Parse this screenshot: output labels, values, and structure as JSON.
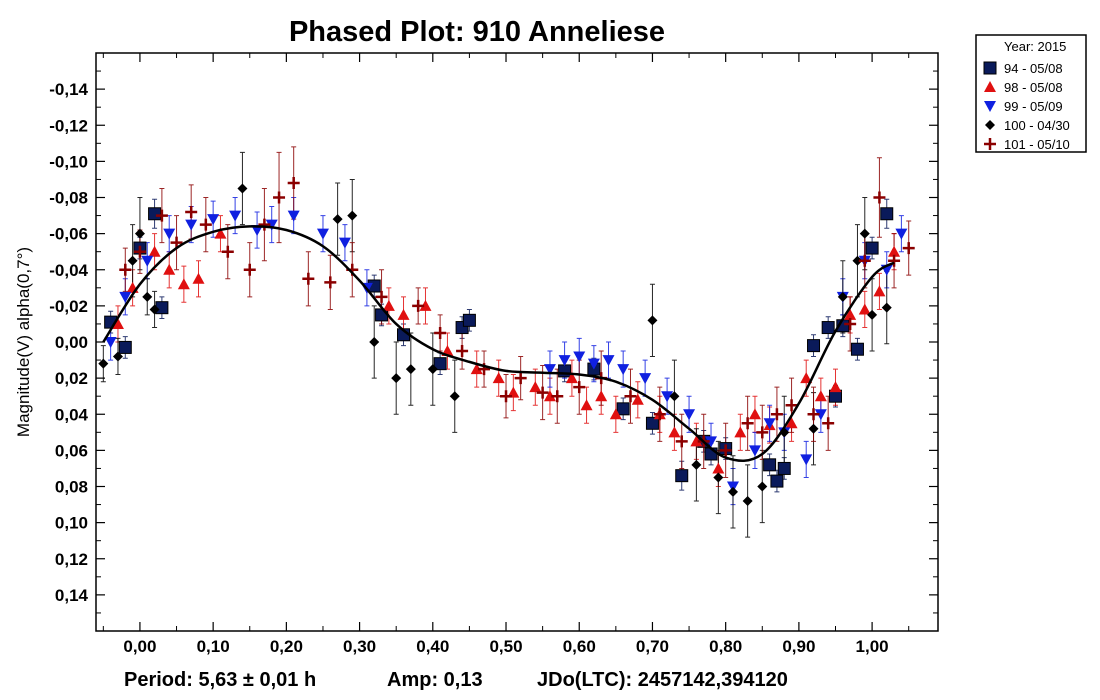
{
  "chart_data": {
    "type": "scatter",
    "title": "Phased Plot: 910 Anneliese",
    "ylabel": "Magnitude(V) alpha(0,7°)",
    "xlabel": "",
    "xlim": [
      -0.06,
      1.09
    ],
    "ylim": [
      0.16,
      -0.16
    ],
    "y_inverted": true,
    "x_ticks": [
      "0,00",
      "0,10",
      "0,20",
      "0,30",
      "0,40",
      "0,50",
      "0,60",
      "0,70",
      "0,80",
      "0,90",
      "1,00"
    ],
    "x_tick_values": [
      0,
      0.1,
      0.2,
      0.3,
      0.4,
      0.5,
      0.6,
      0.7,
      0.8,
      0.9,
      1.0
    ],
    "y_ticks": [
      "-0,14",
      "-0,12",
      "-0,10",
      "-0,08",
      "-0,06",
      "-0,04",
      "-0,02",
      "0,00",
      "0,02",
      "0,04",
      "0,06",
      "0,08",
      "0,10",
      "0,12",
      "0,14"
    ],
    "y_tick_values": [
      -0.14,
      -0.12,
      -0.1,
      -0.08,
      -0.06,
      -0.04,
      -0.02,
      0,
      0.02,
      0.04,
      0.06,
      0.08,
      0.1,
      0.12,
      0.14
    ],
    "grid": false,
    "legend": {
      "title": "Year: 2015",
      "position": "top-right-outside",
      "entries": [
        {
          "label": "94 - 05/08",
          "marker": "square",
          "color": "#0a1a5a"
        },
        {
          "label": "98 - 05/08",
          "marker": "triangle-up",
          "color": "#e01010"
        },
        {
          "label": "99 - 05/09",
          "marker": "triangle-down",
          "color": "#1020e0"
        },
        {
          "label": "100 - 04/30",
          "marker": "diamond",
          "color": "#000000"
        },
        {
          "label": "101 - 05/10",
          "marker": "plus",
          "color": "#8b0000"
        }
      ]
    },
    "fit_curve": {
      "color": "#000000",
      "x": [
        -0.05,
        0.0,
        0.05,
        0.1,
        0.15,
        0.2,
        0.25,
        0.3,
        0.35,
        0.4,
        0.45,
        0.5,
        0.55,
        0.6,
        0.65,
        0.7,
        0.75,
        0.8,
        0.85,
        0.9,
        0.95,
        1.0,
        1.03
      ],
      "y": [
        0.0,
        -0.032,
        -0.052,
        -0.061,
        -0.064,
        -0.062,
        -0.053,
        -0.034,
        -0.01,
        0.004,
        0.011,
        0.016,
        0.017,
        0.018,
        0.022,
        0.032,
        0.048,
        0.064,
        0.062,
        0.034,
        -0.006,
        -0.036,
        -0.044
      ]
    },
    "series": [
      {
        "name": "94 - 05/08",
        "marker": "square",
        "color": "#0a1a5a",
        "x": [
          -0.04,
          -0.02,
          0.0,
          0.02,
          0.03,
          0.32,
          0.33,
          0.36,
          0.41,
          0.44,
          0.45,
          0.58,
          0.62,
          0.66,
          0.7,
          0.74,
          0.77,
          0.78,
          0.8,
          0.86,
          0.87,
          0.88,
          0.92,
          0.94,
          0.95,
          0.96,
          0.98,
          1.0,
          1.02
        ],
        "y": [
          -0.011,
          0.003,
          -0.052,
          -0.071,
          -0.019,
          -0.031,
          -0.015,
          -0.004,
          0.012,
          -0.008,
          -0.012,
          0.016,
          0.015,
          0.037,
          0.045,
          0.074,
          0.055,
          0.062,
          0.059,
          0.068,
          0.077,
          0.07,
          0.002,
          -0.008,
          0.03,
          -0.009,
          0.004,
          -0.052,
          -0.071
        ],
        "err": [
          0.006,
          0.006,
          0.006,
          0.008,
          0.006,
          0.006,
          0.006,
          0.006,
          0.006,
          0.006,
          0.006,
          0.006,
          0.006,
          0.006,
          0.006,
          0.008,
          0.006,
          0.006,
          0.006,
          0.006,
          0.006,
          0.006,
          0.006,
          0.006,
          0.006,
          0.006,
          0.006,
          0.006,
          0.008
        ]
      },
      {
        "name": "98 - 05/08",
        "marker": "triangle-up",
        "color": "#e01010",
        "x": [
          -0.03,
          -0.01,
          0.02,
          0.04,
          0.06,
          0.08,
          0.11,
          0.34,
          0.36,
          0.39,
          0.42,
          0.46,
          0.49,
          0.51,
          0.54,
          0.56,
          0.59,
          0.61,
          0.63,
          0.65,
          0.68,
          0.71,
          0.73,
          0.76,
          0.79,
          0.82,
          0.84,
          0.86,
          0.89,
          0.91,
          0.93,
          0.95,
          0.97,
          0.99,
          1.01,
          1.03
        ],
        "y": [
          -0.01,
          -0.03,
          -0.05,
          -0.04,
          -0.032,
          -0.035,
          -0.06,
          -0.02,
          -0.015,
          -0.02,
          0.005,
          0.015,
          0.02,
          0.028,
          0.025,
          0.03,
          0.02,
          0.035,
          0.03,
          0.04,
          0.032,
          0.04,
          0.05,
          0.055,
          0.07,
          0.05,
          0.04,
          0.046,
          0.045,
          0.02,
          0.03,
          0.025,
          -0.015,
          -0.018,
          -0.028,
          -0.05
        ],
        "err": [
          0.01,
          0.01,
          0.01,
          0.01,
          0.01,
          0.01,
          0.01,
          0.01,
          0.01,
          0.01,
          0.01,
          0.01,
          0.01,
          0.01,
          0.01,
          0.01,
          0.01,
          0.01,
          0.01,
          0.01,
          0.01,
          0.01,
          0.01,
          0.01,
          0.01,
          0.01,
          0.01,
          0.01,
          0.01,
          0.01,
          0.01,
          0.01,
          0.01,
          0.01,
          0.01,
          0.01
        ]
      },
      {
        "name": "99 - 05/09",
        "marker": "triangle-down",
        "color": "#1020e0",
        "x": [
          -0.04,
          -0.02,
          0.01,
          0.04,
          0.07,
          0.1,
          0.13,
          0.16,
          0.18,
          0.21,
          0.25,
          0.28,
          0.31,
          0.56,
          0.58,
          0.6,
          0.62,
          0.64,
          0.66,
          0.69,
          0.72,
          0.75,
          0.78,
          0.81,
          0.84,
          0.86,
          0.88,
          0.91,
          0.93,
          0.96,
          0.99,
          1.02,
          1.04
        ],
        "y": [
          0.0,
          -0.025,
          -0.045,
          -0.06,
          -0.065,
          -0.068,
          -0.07,
          -0.062,
          -0.065,
          -0.07,
          -0.06,
          -0.055,
          -0.03,
          0.015,
          0.01,
          0.008,
          0.012,
          0.01,
          0.015,
          0.02,
          0.03,
          0.04,
          0.055,
          0.08,
          0.06,
          0.045,
          0.05,
          0.065,
          0.04,
          -0.025,
          -0.045,
          -0.04,
          -0.06
        ],
        "err": [
          0.01,
          0.01,
          0.01,
          0.01,
          0.01,
          0.01,
          0.01,
          0.01,
          0.01,
          0.01,
          0.01,
          0.01,
          0.01,
          0.01,
          0.01,
          0.01,
          0.01,
          0.01,
          0.01,
          0.01,
          0.01,
          0.01,
          0.01,
          0.01,
          0.01,
          0.01,
          0.01,
          0.01,
          0.01,
          0.01,
          0.01,
          0.01,
          0.01
        ]
      },
      {
        "name": "100 - 04/30",
        "marker": "diamond",
        "color": "#000000",
        "x": [
          -0.05,
          -0.03,
          -0.01,
          0.0,
          0.01,
          0.02,
          0.14,
          0.27,
          0.29,
          0.32,
          0.35,
          0.37,
          0.4,
          0.43,
          0.7,
          0.73,
          0.76,
          0.79,
          0.81,
          0.83,
          0.85,
          0.88,
          0.92,
          0.96,
          0.98,
          0.99,
          1.0,
          1.02
        ],
        "y": [
          0.012,
          0.008,
          -0.045,
          -0.06,
          -0.025,
          -0.018,
          -0.085,
          -0.068,
          -0.07,
          0.0,
          0.02,
          0.015,
          0.015,
          0.03,
          -0.012,
          0.03,
          0.068,
          0.075,
          0.083,
          0.088,
          0.08,
          0.05,
          0.048,
          -0.025,
          -0.045,
          -0.06,
          -0.015,
          -0.019
        ],
        "err": [
          0.01,
          0.01,
          0.02,
          0.02,
          0.01,
          0.01,
          0.02,
          0.02,
          0.02,
          0.02,
          0.02,
          0.02,
          0.02,
          0.02,
          0.02,
          0.02,
          0.02,
          0.02,
          0.02,
          0.02,
          0.02,
          0.02,
          0.02,
          0.02,
          0.02,
          0.02,
          0.02,
          0.02
        ]
      },
      {
        "name": "101 - 05/10",
        "marker": "plus",
        "color": "#8b0000",
        "x": [
          -0.02,
          0.0,
          0.03,
          0.05,
          0.07,
          0.09,
          0.12,
          0.15,
          0.17,
          0.19,
          0.21,
          0.23,
          0.26,
          0.29,
          0.33,
          0.38,
          0.41,
          0.44,
          0.47,
          0.5,
          0.52,
          0.55,
          0.57,
          0.6,
          0.63,
          0.67,
          0.71,
          0.74,
          0.77,
          0.8,
          0.83,
          0.85,
          0.87,
          0.89,
          0.92,
          0.94,
          0.97,
          0.99,
          1.01,
          1.03,
          1.05
        ],
        "y": [
          -0.04,
          -0.05,
          -0.07,
          -0.055,
          -0.072,
          -0.065,
          -0.05,
          -0.04,
          -0.065,
          -0.08,
          -0.088,
          -0.035,
          -0.033,
          -0.04,
          -0.025,
          -0.02,
          -0.005,
          0.005,
          0.015,
          0.03,
          0.02,
          0.028,
          0.03,
          0.025,
          0.02,
          0.03,
          0.04,
          0.055,
          0.055,
          0.06,
          0.045,
          0.05,
          0.04,
          0.035,
          0.04,
          0.045,
          -0.01,
          -0.045,
          -0.08,
          -0.045,
          -0.052
        ],
        "err": [
          0.012,
          0.012,
          0.015,
          0.015,
          0.015,
          0.015,
          0.015,
          0.015,
          0.02,
          0.025,
          0.02,
          0.015,
          0.015,
          0.015,
          0.015,
          0.01,
          0.01,
          0.01,
          0.01,
          0.012,
          0.012,
          0.015,
          0.015,
          0.015,
          0.015,
          0.015,
          0.015,
          0.015,
          0.015,
          0.015,
          0.015,
          0.015,
          0.015,
          0.015,
          0.015,
          0.015,
          0.015,
          0.015,
          0.022,
          0.015,
          0.015
        ]
      }
    ]
  },
  "footer": {
    "period": "Period: 5,63 ± 0,01 h",
    "amp": "Amp: 0,13",
    "jdo": "JDo(LTC): 2457142,394120"
  }
}
